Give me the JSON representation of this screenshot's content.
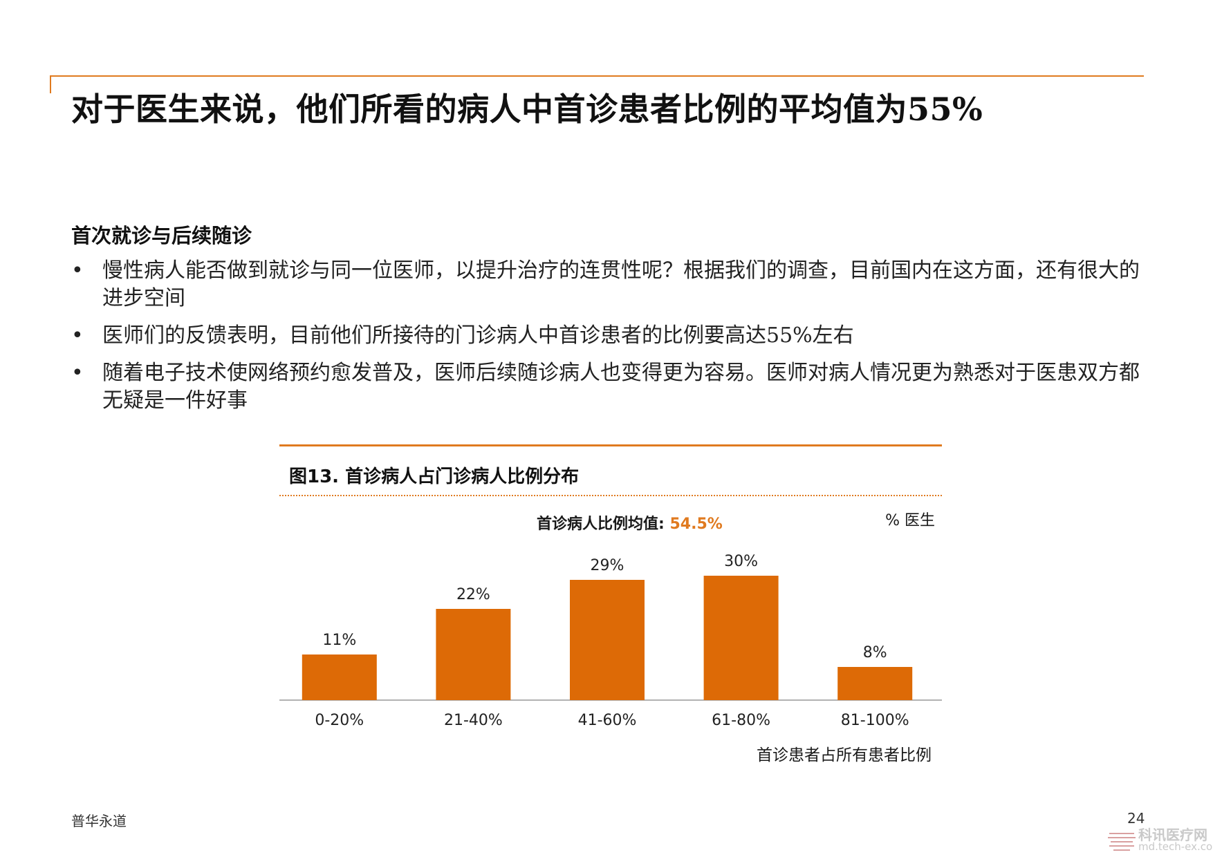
{
  "slide": {
    "title": "对于医生来说，他们所看的病人中首诊患者比例的平均值为55%",
    "section_heading": "首次就诊与后续随诊",
    "bullets": [
      "慢性病人能否做到就诊与同一位医师，以提升治疗的连贯性呢？根据我们的调查，目前国内在这方面，还有很大的进步空间",
      "医师们的反馈表明，目前他们所接待的门诊病人中首诊患者的比例要高达55%左右",
      "随着电子技术使网络预约愈发普及，医师后续随诊病人也变得更为容易。医师对病人情况更为熟悉对于医患双方都无疑是一件好事"
    ],
    "bullet_marker": "•",
    "footer_left": "普华永道",
    "page_number": "24"
  },
  "figure": {
    "title": "图13.  首诊病人占门诊病人比例分布",
    "mean_label": "首诊病人比例均值: ",
    "mean_value": "54.5%",
    "unit_label": "% 医生"
  },
  "chart_data": {
    "type": "bar",
    "categories": [
      "0-20%",
      "21-40%",
      "41-60%",
      "61-80%",
      "81-100%"
    ],
    "values": [
      11,
      22,
      29,
      30,
      8
    ],
    "data_labels": [
      "11%",
      "22%",
      "29%",
      "30%",
      "8%"
    ],
    "xlabel": "首诊患者占所有患者比例",
    "ylabel": "",
    "ylim": [
      0,
      30
    ],
    "grid": false,
    "bar_color": "#dd6a06"
  },
  "watermark": {
    "name": "科讯医疗网",
    "url": "md.tech-ex.com"
  },
  "colors": {
    "accent": "#e07a1f",
    "bar": "#dd6a06"
  }
}
